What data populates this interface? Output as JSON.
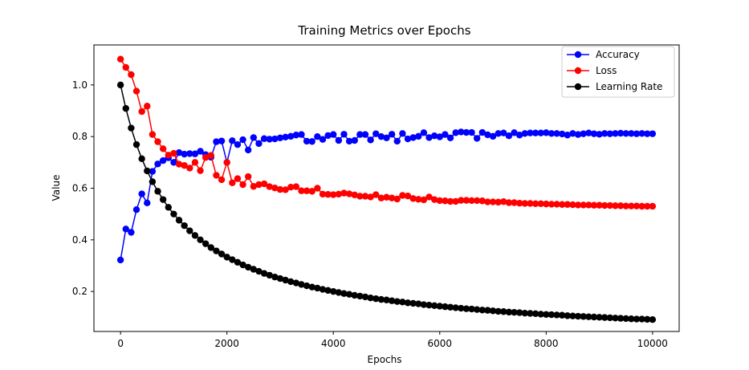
{
  "chart_data": {
    "type": "line",
    "title": "Training Metrics over Epochs",
    "xlabel": "Epochs",
    "ylabel": "Value",
    "xlim": [
      -500,
      10500
    ],
    "ylim": [
      0.045,
      1.155
    ],
    "xticks": [
      0,
      2000,
      4000,
      6000,
      8000,
      10000
    ],
    "yticks": [
      0.2,
      0.4,
      0.6,
      0.8,
      1.0
    ],
    "xtick_labels": [
      "0",
      "2000",
      "4000",
      "6000",
      "8000",
      "10000"
    ],
    "ytick_labels": [
      "0.2",
      "0.4",
      "0.6",
      "0.8",
      "1.0"
    ],
    "grid": false,
    "legend_position": "top-right",
    "x": [
      0,
      100,
      200,
      300,
      400,
      500,
      600,
      700,
      800,
      900,
      1000,
      1100,
      1200,
      1300,
      1400,
      1500,
      1600,
      1700,
      1800,
      1900,
      2000,
      2100,
      2200,
      2300,
      2400,
      2500,
      2600,
      2700,
      2800,
      2900,
      3000,
      3100,
      3200,
      3300,
      3400,
      3500,
      3600,
      3700,
      3800,
      3900,
      4000,
      4100,
      4200,
      4300,
      4400,
      4500,
      4600,
      4700,
      4800,
      4900,
      5000,
      5100,
      5200,
      5300,
      5400,
      5500,
      5600,
      5700,
      5800,
      5900,
      6000,
      6100,
      6200,
      6300,
      6400,
      6500,
      6600,
      6700,
      6800,
      6900,
      7000,
      7100,
      7200,
      7300,
      7400,
      7500,
      7600,
      7700,
      7800,
      7900,
      8000,
      8100,
      8200,
      8300,
      8400,
      8500,
      8600,
      8700,
      8800,
      8900,
      9000,
      9100,
      9200,
      9300,
      9400,
      9500,
      9600,
      9700,
      9800,
      9900,
      10000
    ],
    "series": [
      {
        "name": "Accuracy",
        "color": "#0000ff",
        "values": [
          0.322,
          0.442,
          0.429,
          0.517,
          0.578,
          0.543,
          0.665,
          0.694,
          0.707,
          0.718,
          0.7,
          0.738,
          0.732,
          0.734,
          0.733,
          0.743,
          0.73,
          0.72,
          0.78,
          0.783,
          0.7,
          0.784,
          0.769,
          0.788,
          0.748,
          0.796,
          0.773,
          0.792,
          0.79,
          0.791,
          0.795,
          0.798,
          0.801,
          0.806,
          0.808,
          0.782,
          0.781,
          0.8,
          0.789,
          0.804,
          0.808,
          0.785,
          0.809,
          0.782,
          0.785,
          0.808,
          0.808,
          0.787,
          0.811,
          0.8,
          0.795,
          0.809,
          0.782,
          0.812,
          0.791,
          0.796,
          0.801,
          0.815,
          0.796,
          0.803,
          0.799,
          0.808,
          0.795,
          0.815,
          0.818,
          0.816,
          0.816,
          0.793,
          0.816,
          0.807,
          0.801,
          0.812,
          0.814,
          0.803,
          0.815,
          0.806,
          0.812,
          0.814,
          0.814,
          0.814,
          0.815,
          0.812,
          0.812,
          0.81,
          0.806,
          0.812,
          0.808,
          0.811,
          0.814,
          0.811,
          0.809,
          0.812,
          0.811,
          0.812,
          0.813,
          0.812,
          0.812,
          0.811,
          0.812,
          0.811,
          0.811
        ]
      },
      {
        "name": "Loss",
        "color": "#ff0000",
        "values": [
          1.1,
          1.068,
          1.04,
          0.976,
          0.897,
          0.918,
          0.808,
          0.78,
          0.753,
          0.728,
          0.735,
          0.693,
          0.688,
          0.678,
          0.7,
          0.668,
          0.719,
          0.727,
          0.65,
          0.633,
          0.7,
          0.621,
          0.637,
          0.614,
          0.645,
          0.607,
          0.614,
          0.617,
          0.606,
          0.601,
          0.595,
          0.594,
          0.604,
          0.606,
          0.59,
          0.59,
          0.588,
          0.6,
          0.577,
          0.576,
          0.575,
          0.577,
          0.581,
          0.578,
          0.574,
          0.569,
          0.569,
          0.566,
          0.575,
          0.562,
          0.565,
          0.562,
          0.558,
          0.572,
          0.57,
          0.56,
          0.557,
          0.555,
          0.566,
          0.556,
          0.552,
          0.551,
          0.549,
          0.549,
          0.553,
          0.553,
          0.552,
          0.552,
          0.551,
          0.547,
          0.547,
          0.546,
          0.548,
          0.544,
          0.544,
          0.542,
          0.541,
          0.541,
          0.54,
          0.54,
          0.539,
          0.538,
          0.538,
          0.537,
          0.537,
          0.536,
          0.535,
          0.535,
          0.535,
          0.534,
          0.534,
          0.533,
          0.533,
          0.532,
          0.532,
          0.531,
          0.531,
          0.531,
          0.53,
          0.53,
          0.53
        ]
      },
      {
        "name": "Learning Rate",
        "color": "#000000",
        "values": [
          1.0,
          0.909,
          0.833,
          0.769,
          0.714,
          0.667,
          0.625,
          0.588,
          0.556,
          0.526,
          0.5,
          0.476,
          0.455,
          0.435,
          0.417,
          0.4,
          0.385,
          0.37,
          0.357,
          0.345,
          0.333,
          0.323,
          0.313,
          0.303,
          0.294,
          0.286,
          0.278,
          0.27,
          0.263,
          0.256,
          0.25,
          0.244,
          0.238,
          0.233,
          0.227,
          0.222,
          0.217,
          0.213,
          0.208,
          0.204,
          0.2,
          0.196,
          0.192,
          0.189,
          0.185,
          0.182,
          0.179,
          0.175,
          0.172,
          0.169,
          0.167,
          0.164,
          0.161,
          0.159,
          0.156,
          0.154,
          0.152,
          0.149,
          0.147,
          0.145,
          0.143,
          0.141,
          0.139,
          0.137,
          0.135,
          0.133,
          0.132,
          0.13,
          0.128,
          0.127,
          0.125,
          0.123,
          0.122,
          0.12,
          0.119,
          0.118,
          0.116,
          0.115,
          0.114,
          0.112,
          0.111,
          0.11,
          0.109,
          0.108,
          0.106,
          0.105,
          0.104,
          0.103,
          0.102,
          0.101,
          0.1,
          0.099,
          0.098,
          0.097,
          0.096,
          0.095,
          0.094,
          0.093,
          0.093,
          0.092,
          0.091
        ]
      }
    ]
  }
}
